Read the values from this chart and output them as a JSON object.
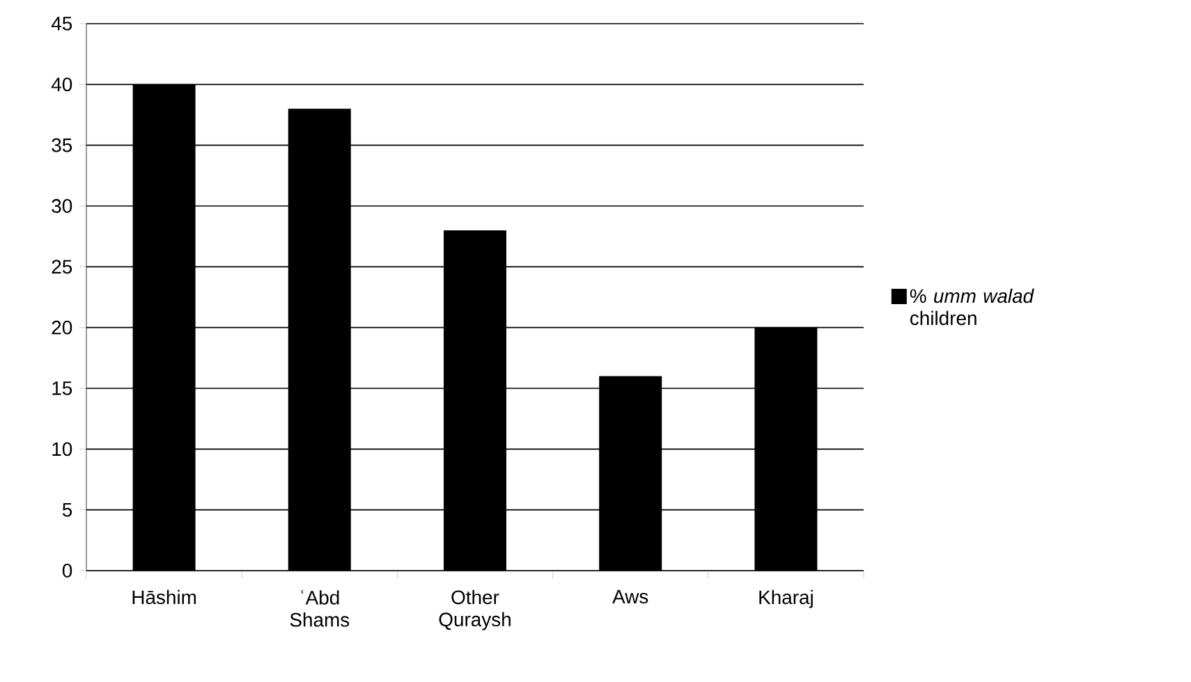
{
  "chart_data": {
    "type": "bar",
    "categories": [
      "Hāshim",
      "ʿAbd Shams",
      "Other Quraysh",
      "Aws",
      "Kharaj"
    ],
    "series": [
      {
        "name": "% *umm walad* children",
        "color": "#000000",
        "values": [
          40,
          38,
          28,
          16,
          20
        ]
      }
    ],
    "ylim": [
      0,
      45
    ],
    "yticks": [
      0,
      5,
      10,
      15,
      20,
      25,
      30,
      35,
      40,
      45
    ],
    "grid": "y",
    "legend": "right"
  }
}
